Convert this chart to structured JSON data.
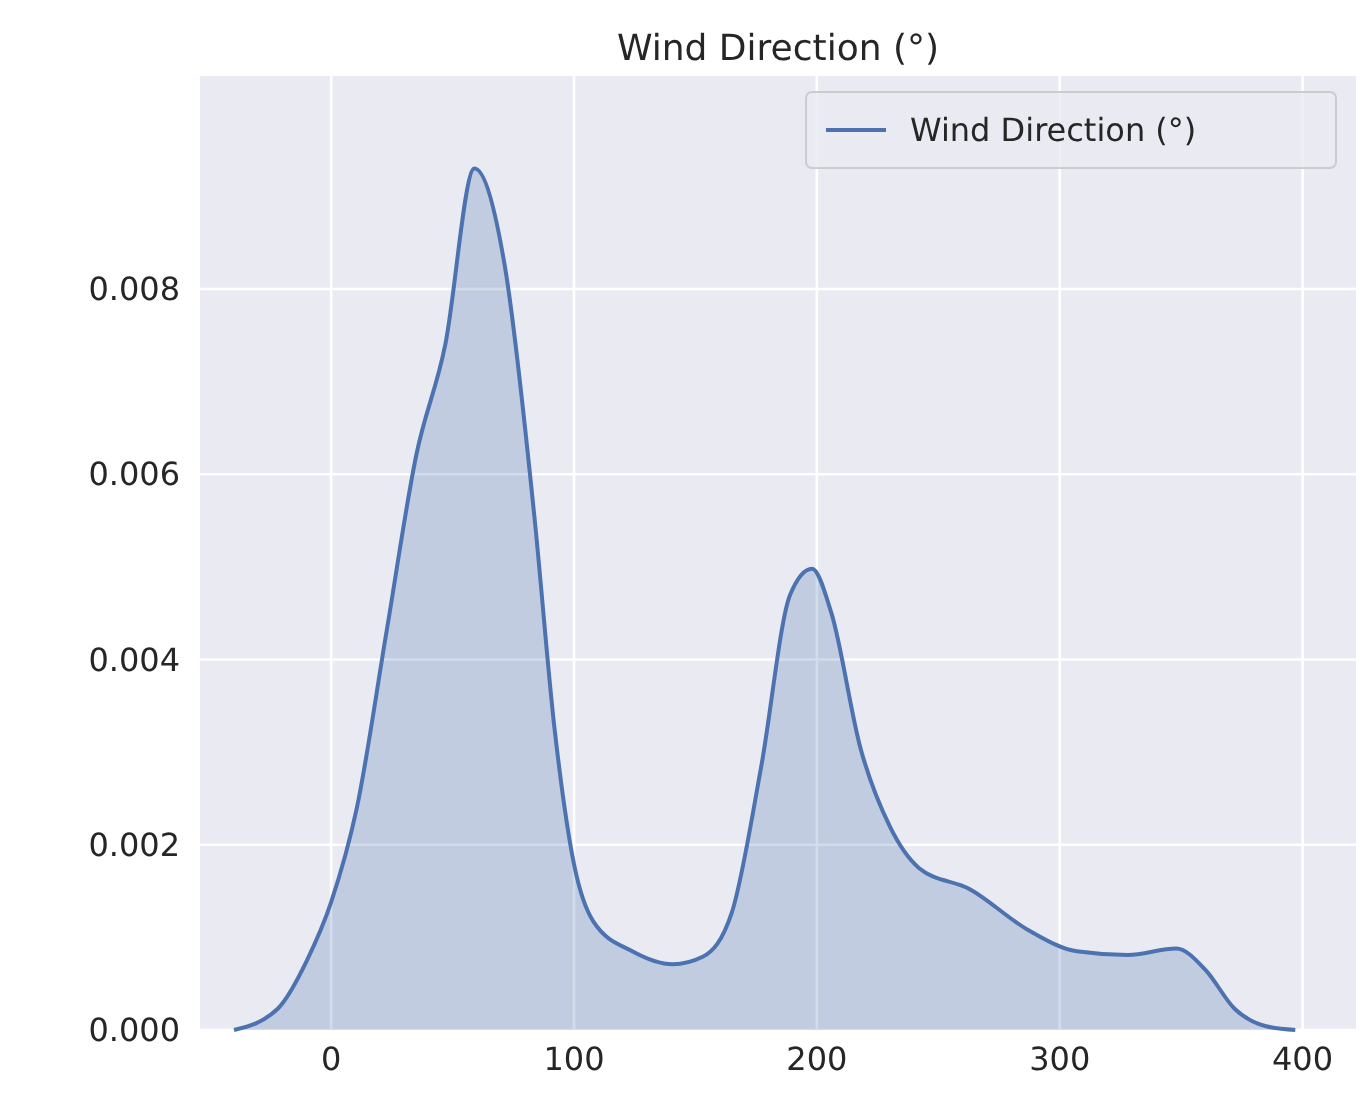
{
  "chart_data": {
    "type": "area",
    "title": "Wind Direction (°)",
    "x": [
      -40,
      -22,
      -10,
      0,
      10.6,
      22.8,
      35,
      47,
      59,
      71.5,
      83.7,
      92,
      100,
      108,
      124,
      140.7,
      153,
      165,
      177,
      189,
      198,
      206,
      218,
      230,
      242,
      263,
      287,
      307,
      328,
      348,
      360,
      372,
      385,
      397
    ],
    "series": [
      {
        "name": "Wind Direction (°)",
        "color": "#4c72b0",
        "values": [
          0,
          0.00023,
          0.00075,
          0.00138,
          0.0024,
          0.0043,
          0.0062,
          0.0074,
          0.0093,
          0.00825,
          0.00554,
          0.00325,
          0.00179,
          0.00117,
          0.00085,
          0.00071,
          0.00079,
          0.00127,
          0.00283,
          0.0047,
          0.00498,
          0.0045,
          0.00304,
          0.0022,
          0.00175,
          0.00152,
          0.00108,
          0.00085,
          0.00081,
          0.00088,
          0.00065,
          0.00023,
          4e-05,
          0
        ]
      }
    ],
    "xlim": [
      -54,
      422
    ],
    "xticks": [
      0,
      100,
      200,
      300,
      400
    ],
    "ylim": [
      0,
      0.0103
    ],
    "yticks": [
      {
        "value": 0,
        "label": "0.000"
      },
      {
        "value": 0.002,
        "label": "0.002"
      },
      {
        "value": 0.004,
        "label": "0.004"
      },
      {
        "value": 0.006,
        "label": "0.006"
      },
      {
        "value": 0.008,
        "label": "0.008"
      }
    ],
    "grid": true,
    "legend": "top right"
  }
}
